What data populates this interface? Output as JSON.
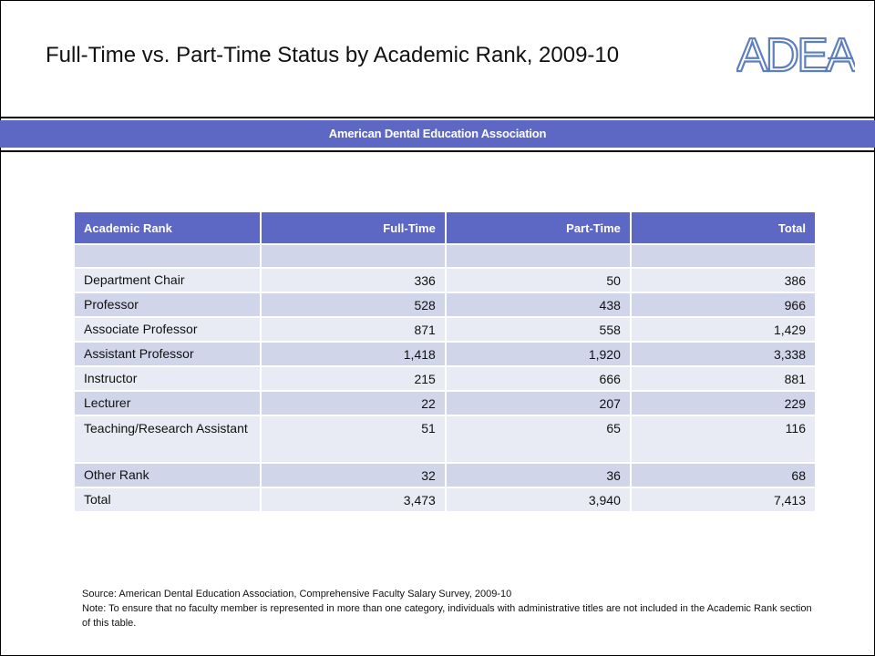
{
  "title": "Full-Time vs. Part-Time Status by Academic Rank, 2009-10",
  "logo": {
    "text": "ADEA"
  },
  "banner": "American Dental Education Association",
  "table": {
    "headers": [
      "Academic Rank",
      "Full-Time",
      "Part-Time",
      "Total"
    ],
    "rows": [
      [
        "",
        "",
        "",
        ""
      ],
      [
        "Department Chair",
        "336",
        "50",
        "386"
      ],
      [
        "Professor",
        "528",
        "438",
        "966"
      ],
      [
        "Associate Professor",
        "871",
        "558",
        "1,429"
      ],
      [
        "Assistant Professor",
        "1,418",
        "1,920",
        "3,338"
      ],
      [
        "Instructor",
        "215",
        "666",
        "881"
      ],
      [
        "Lecturer",
        "22",
        "207",
        "229"
      ],
      [
        "Teaching/Research Assistant",
        "51",
        "65",
        "116"
      ],
      [
        "Other Rank",
        "32",
        "36",
        "68"
      ],
      [
        "Total",
        "3,473",
        "3,940",
        "7,413"
      ]
    ]
  },
  "source": {
    "line1": "Source: American Dental Education Association, Comprehensive Faculty Salary Survey, 2009-10",
    "line2": "Note: To ensure that no faculty member is represented in more than one category, individuals with administrative titles are not included in the Academic Rank section of this table."
  }
}
